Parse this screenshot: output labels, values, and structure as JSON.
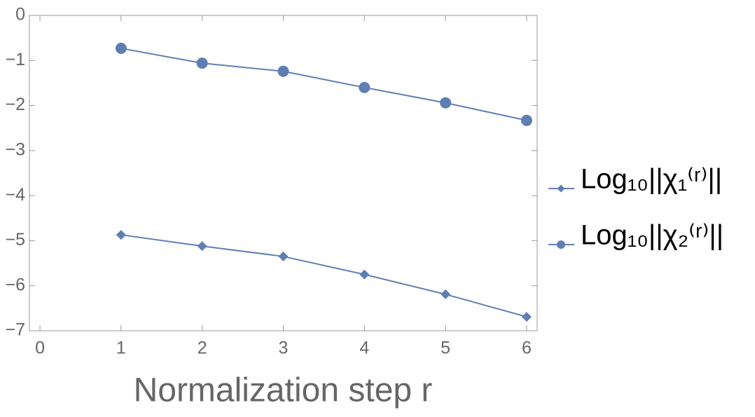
{
  "chart_data": {
    "type": "line",
    "x_label": "Normalization step r",
    "x": [
      1,
      2,
      3,
      4,
      5,
      6
    ],
    "series": [
      {
        "name": "Log₁₀||χ₁⁽ʳ⁾||",
        "color": "#5f7fb3",
        "marker": "diamond",
        "values": [
          -4.87,
          -5.12,
          -5.35,
          -5.75,
          -6.19,
          -6.69
        ]
      },
      {
        "name": "Log₁₀||χ₂⁽ʳ⁾||",
        "color": "#5f7fb3",
        "marker": "circle",
        "values": [
          -0.73,
          -1.06,
          -1.24,
          -1.6,
          -1.94,
          -2.33
        ]
      }
    ],
    "xlim": [
      -0.13,
      6.13
    ],
    "xticks": [
      0,
      1,
      2,
      3,
      4,
      5,
      6
    ],
    "ylim": [
      -7,
      0
    ],
    "yticks": [
      0,
      {
        "value": -1,
        "label": "−1"
      },
      {
        "value": -2,
        "label": "−2"
      },
      {
        "value": -3,
        "label": "−3"
      },
      {
        "value": -4,
        "label": "−4"
      },
      {
        "value": -5,
        "label": "−5"
      },
      {
        "value": -6,
        "label": "−6"
      },
      {
        "value": -7,
        "label": "−7"
      }
    ],
    "legend": "right"
  }
}
